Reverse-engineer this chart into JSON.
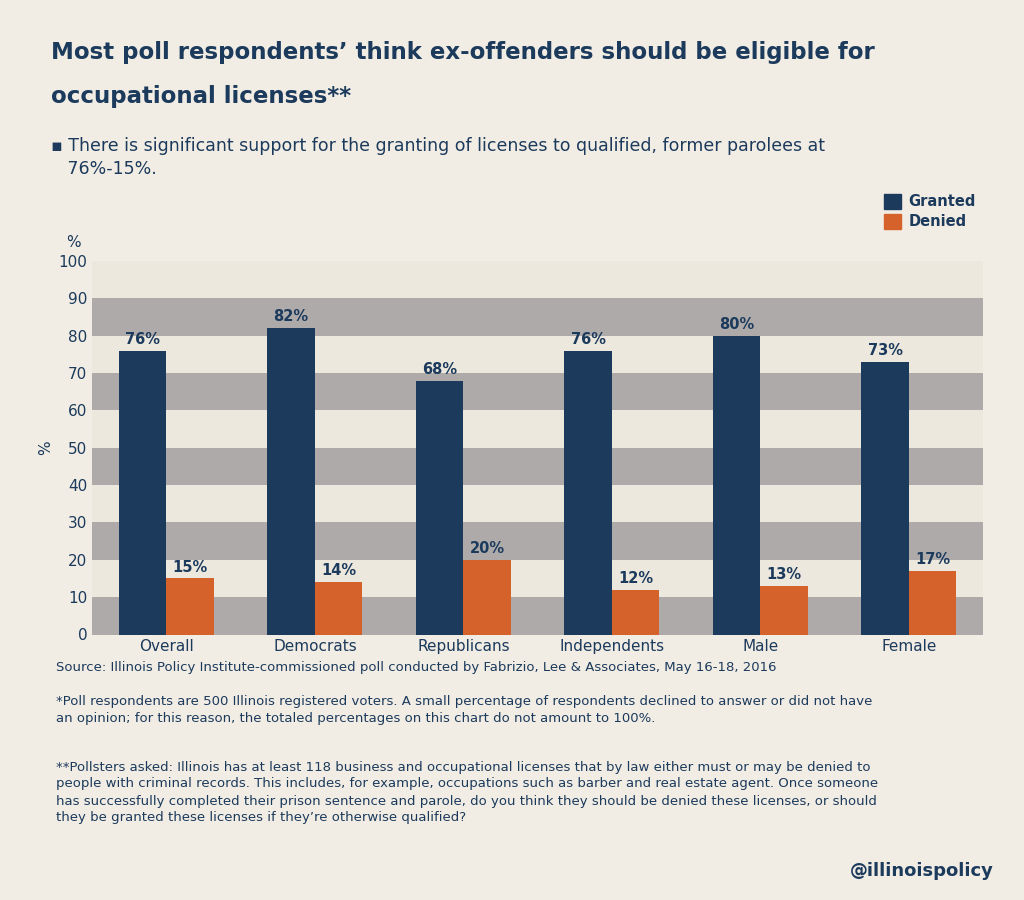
{
  "title_line1": "Most poll respondents’ think ex-offenders should be eligible for",
  "title_line2": "occupational licenses**",
  "subtitle_bullet": "▪ There is significant support for the granting of licenses to qualified, former parolees at\n   76%-15%.",
  "ylabel": "%",
  "categories": [
    "Overall",
    "Democrats",
    "Republicans",
    "Independents",
    "Male",
    "Female"
  ],
  "granted_values": [
    76,
    82,
    68,
    76,
    80,
    73
  ],
  "denied_values": [
    15,
    14,
    20,
    12,
    13,
    17
  ],
  "granted_color": "#1B3A5C",
  "denied_color": "#D4622A",
  "bg_color": "#F2EDE4",
  "plot_bg_light": "#EDE8DE",
  "plot_bg_dark": "#AEAAAA",
  "ylim": [
    0,
    100
  ],
  "yticks": [
    0,
    10,
    20,
    30,
    40,
    50,
    60,
    70,
    80,
    90,
    100
  ],
  "bar_width": 0.32,
  "legend_granted": "Granted",
  "legend_denied": "Denied",
  "source_text": "Source: Illinois Policy Institute-commissioned poll conducted by Fabrizio, Lee & Associates, May 16-18, 2016",
  "footnote1": "*Poll respondents are 500 Illinois registered voters. A small percentage of respondents declined to answer or did not have\nan opinion; for this reason, the totaled percentages on this chart do not amount to 100%.",
  "footnote2": "**Pollsters asked: Illinois has at least 118 business and occupational licenses that by law either must or may be denied to\npeople with criminal records. This includes, for example, occupations such as barber and real estate agent. Once someone\nhas successfully completed their prison sentence and parole, do you think they should be denied these licenses, or should\nthey be granted these licenses if they’re otherwise qualified?",
  "watermark": "@illinoispolicy",
  "title_color": "#1B3A5C",
  "text_color": "#1B3A5C",
  "label_fontsize": 10.5,
  "title_fontsize": 16.5,
  "subtitle_fontsize": 12.5,
  "axis_fontsize": 11,
  "tick_fontsize": 11,
  "footnote_fontsize": 9.5,
  "watermark_fontsize": 13
}
